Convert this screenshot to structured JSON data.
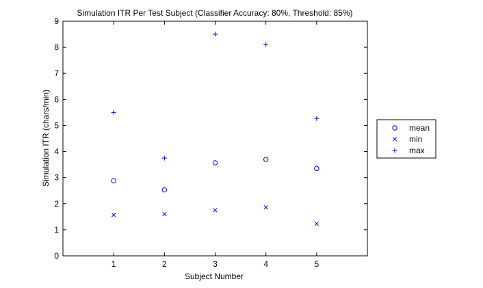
{
  "chart_data": {
    "type": "scatter",
    "title": "Simulation ITR Per Test Subject (Classifier Accuracy: 80%, Threshold: 85%)",
    "xlabel": "Subject Number",
    "ylabel": "Simulation ITR (chars/min)",
    "xlim": [
      0,
      6
    ],
    "ylim": [
      0,
      9
    ],
    "xticks": [
      "1",
      "2",
      "3",
      "4",
      "5"
    ],
    "yticks": [
      "0",
      "1",
      "2",
      "3",
      "4",
      "5",
      "6",
      "7",
      "8",
      "9"
    ],
    "x": [
      1,
      2,
      3,
      4,
      5
    ],
    "series": [
      {
        "name": "mean",
        "marker": "circle",
        "values": [
          2.88,
          2.53,
          3.57,
          3.7,
          3.35
        ]
      },
      {
        "name": "min",
        "marker": "x",
        "values": [
          1.57,
          1.6,
          1.75,
          1.86,
          1.23
        ]
      },
      {
        "name": "max",
        "marker": "plus",
        "values": [
          5.5,
          3.75,
          8.5,
          8.1,
          5.27
        ]
      }
    ],
    "grid": false,
    "legend_position": "outside-right",
    "marker_color": "#0000ff"
  }
}
